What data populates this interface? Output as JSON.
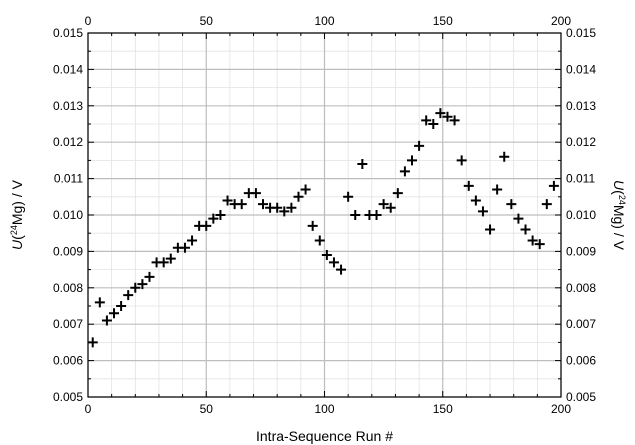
{
  "chart_data": {
    "type": "scatter",
    "marker": "plus",
    "xlabel": "Intra-Sequence Run #",
    "ylabel_left": {
      "italic": "U",
      "pre": "(",
      "sup": "24",
      "post": "Mg) / V"
    },
    "ylabel_right": {
      "italic": "U",
      "pre": "(",
      "sup": "24",
      "post": "Mg) / V"
    },
    "xlim": [
      0,
      200
    ],
    "ylim": [
      0.005,
      0.015
    ],
    "x_ticks": [
      "0",
      "50",
      "100",
      "150",
      "200"
    ],
    "y_ticks": [
      "0.005",
      "0.006",
      "0.007",
      "0.008",
      "0.009",
      "0.010",
      "0.011",
      "0.012",
      "0.013",
      "0.014",
      "0.015"
    ],
    "x_tick_values": [
      0,
      50,
      100,
      150,
      200
    ],
    "y_tick_values": [
      0.005,
      0.006,
      0.007,
      0.008,
      0.009,
      0.01,
      0.011,
      0.012,
      0.013,
      0.014,
      0.015
    ],
    "grid": true,
    "colors": {
      "marker": "#000000",
      "grid_major": "#bdbdbd",
      "grid_minor": "#e2e2e2"
    },
    "series": [
      {
        "x": [
          2,
          5,
          8,
          11,
          14,
          17,
          20,
          23,
          26,
          29,
          32,
          35,
          38,
          41,
          44,
          47,
          50,
          53,
          56,
          59,
          62,
          65,
          68,
          71,
          74,
          77,
          80,
          83,
          86,
          89,
          92,
          95,
          98,
          101,
          104,
          107,
          110,
          113,
          116,
          119,
          122,
          125,
          128,
          131,
          134,
          137,
          140,
          143,
          146,
          149,
          152,
          155,
          158,
          161,
          164,
          167,
          170,
          173,
          176,
          179,
          182,
          185,
          188,
          191,
          194,
          197
        ],
        "y": [
          0.0065,
          0.0076,
          0.0071,
          0.0073,
          0.0075,
          0.0078,
          0.008,
          0.0081,
          0.0083,
          0.0087,
          0.0087,
          0.0088,
          0.0091,
          0.0091,
          0.0093,
          0.0097,
          0.0097,
          0.0099,
          0.01,
          0.0104,
          0.0103,
          0.0103,
          0.0106,
          0.0106,
          0.0103,
          0.0102,
          0.0102,
          0.0101,
          0.0102,
          0.0105,
          0.0107,
          0.0097,
          0.0093,
          0.0089,
          0.0087,
          0.0085,
          0.0105,
          0.01,
          0.0114,
          0.01,
          0.01,
          0.0103,
          0.0102,
          0.0106,
          0.0112,
          0.0115,
          0.0119,
          0.0126,
          0.0125,
          0.0128,
          0.0127,
          0.0126,
          0.0115,
          0.0108,
          0.0104,
          0.0101,
          0.0096,
          0.0107,
          0.0116,
          0.0103,
          0.0099,
          0.0096,
          0.0093,
          0.0092,
          0.0103,
          0.0108
        ]
      }
    ]
  }
}
